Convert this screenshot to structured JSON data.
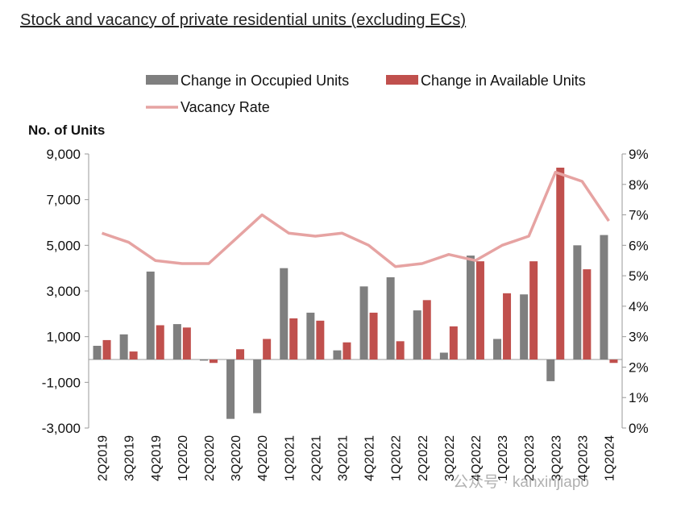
{
  "page": {
    "title": "Stock and vacancy of private residential units (excluding ECs)",
    "watermark": "公众号 · kanxinjiapo"
  },
  "colors": {
    "occupied": "#7f7f7f",
    "available": "#c0504d",
    "vacancy": "#e6a3a2",
    "axis": "#9a9a9a"
  },
  "chart_data": {
    "type": "bar",
    "title": "",
    "ylabel": "No. of Units",
    "y2label": "",
    "ylim": [
      -3000,
      9000
    ],
    "y2lim": [
      0,
      9
    ],
    "yticks": [
      -3000,
      -1000,
      1000,
      3000,
      5000,
      7000,
      9000
    ],
    "ytick_labels": [
      "-3,000",
      "-1,000",
      "1,000",
      "3,000",
      "5,000",
      "7,000",
      "9,000"
    ],
    "y2ticks": [
      0,
      1,
      2,
      3,
      4,
      5,
      6,
      7,
      8,
      9
    ],
    "y2tick_labels": [
      "0%",
      "1%",
      "2%",
      "3%",
      "4%",
      "5%",
      "6%",
      "7%",
      "8%",
      "9%"
    ],
    "legend_position": "top",
    "categories": [
      "2Q2019",
      "3Q2019",
      "4Q2019",
      "1Q2020",
      "2Q2020",
      "3Q2020",
      "4Q2020",
      "1Q2021",
      "2Q2021",
      "3Q2021",
      "4Q2021",
      "1Q2022",
      "2Q2022",
      "3Q2022",
      "4Q2022",
      "1Q2023",
      "2Q2023",
      "3Q2023",
      "4Q2023",
      "1Q2024"
    ],
    "series": [
      {
        "name": "Change in Occupied Units",
        "type": "bar",
        "axis": "left",
        "values": [
          600,
          1100,
          3850,
          1550,
          -50,
          -2600,
          -2350,
          4000,
          2050,
          400,
          3200,
          3600,
          2150,
          300,
          4550,
          900,
          2850,
          -950,
          5000,
          5450
        ]
      },
      {
        "name": "Change in Available Units",
        "type": "bar",
        "axis": "left",
        "values": [
          850,
          350,
          1500,
          1400,
          -150,
          450,
          900,
          1800,
          1700,
          750,
          2050,
          800,
          2600,
          1450,
          4300,
          2900,
          4300,
          8400,
          3950,
          -150
        ]
      },
      {
        "name": "Vacancy Rate",
        "type": "line",
        "axis": "right",
        "values": [
          6.4,
          6.1,
          5.5,
          5.4,
          5.4,
          6.2,
          7.0,
          6.4,
          6.3,
          6.4,
          6.0,
          5.3,
          5.4,
          5.7,
          5.5,
          6.0,
          6.3,
          8.4,
          8.1,
          6.8
        ]
      }
    ]
  }
}
